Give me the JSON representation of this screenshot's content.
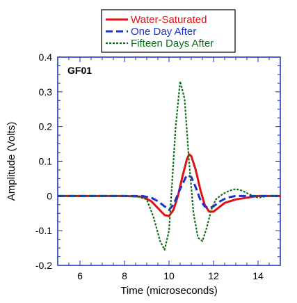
{
  "chart_data": {
    "type": "line",
    "annotation": "GF01",
    "xlabel": "Time (microseconds)",
    "ylabel": "Amplitude (Volts)",
    "xlim": [
      5,
      15
    ],
    "ylim": [
      -0.2,
      0.4
    ],
    "xticks": [
      6,
      8,
      10,
      12,
      14
    ],
    "xtick_labels": [
      "6",
      "8",
      "10",
      "12",
      "14"
    ],
    "yticks": [
      -0.2,
      -0.1,
      0,
      0.1,
      0.2,
      0.3,
      0.4
    ],
    "ytick_labels": [
      "-0.2",
      "-0.1",
      "0",
      "0.1",
      "0.2",
      "0.3",
      "0.4"
    ],
    "grid": false,
    "legend_position": "top-center, outside plot",
    "series": [
      {
        "name": "Water-Saturated",
        "color": "#dd1111",
        "style": "solid",
        "x": [
          5.0,
          6.0,
          7.0,
          8.0,
          8.8,
          9.2,
          9.5,
          9.8,
          10.0,
          10.2,
          10.4,
          10.6,
          10.8,
          10.9,
          11.0,
          11.2,
          11.4,
          11.6,
          11.8,
          12.0,
          12.2,
          12.5,
          13.0,
          13.5,
          14.0,
          14.5,
          15.0
        ],
        "y": [
          0.0,
          0.0,
          0.0,
          0.0,
          -0.002,
          -0.015,
          -0.035,
          -0.055,
          -0.058,
          -0.04,
          0.0,
          0.055,
          0.105,
          0.12,
          0.115,
          0.075,
          0.02,
          -0.025,
          -0.045,
          -0.045,
          -0.035,
          -0.02,
          -0.01,
          -0.005,
          0.0,
          0.0,
          0.0
        ]
      },
      {
        "name": "One Day After",
        "color": "#1a33cc",
        "style": "dashed",
        "x": [
          5.0,
          6.0,
          7.0,
          8.0,
          8.8,
          9.2,
          9.5,
          9.8,
          10.0,
          10.2,
          10.5,
          10.8,
          11.0,
          11.2,
          11.4,
          11.6,
          11.8,
          12.0,
          12.3,
          12.6,
          13.0,
          13.5,
          14.0,
          14.5,
          15.0
        ],
        "y": [
          0.0,
          0.0,
          0.0,
          0.0,
          0.0,
          -0.005,
          -0.015,
          -0.03,
          -0.04,
          -0.025,
          0.02,
          0.06,
          0.055,
          0.025,
          -0.01,
          -0.03,
          -0.035,
          -0.03,
          -0.015,
          -0.005,
          0.0,
          0.0,
          0.0,
          0.0,
          0.0
        ]
      },
      {
        "name": "Fifteen Days After",
        "color": "#0e6e1e",
        "style": "dotted",
        "x": [
          5.0,
          6.0,
          7.0,
          8.0,
          8.6,
          9.0,
          9.3,
          9.6,
          9.8,
          10.0,
          10.15,
          10.3,
          10.5,
          10.7,
          10.9,
          11.1,
          11.3,
          11.5,
          11.7,
          11.9,
          12.1,
          12.4,
          12.7,
          13.0,
          13.3,
          13.6,
          14.0,
          14.5,
          15.0
        ],
        "y": [
          0.0,
          0.0,
          0.0,
          0.0,
          -0.002,
          -0.01,
          -0.06,
          -0.13,
          -0.155,
          -0.1,
          0.05,
          0.2,
          0.33,
          0.28,
          0.1,
          -0.05,
          -0.12,
          -0.13,
          -0.09,
          -0.04,
          -0.01,
          0.005,
          0.015,
          0.02,
          0.015,
          0.005,
          -0.005,
          0.0,
          0.0
        ]
      }
    ]
  }
}
